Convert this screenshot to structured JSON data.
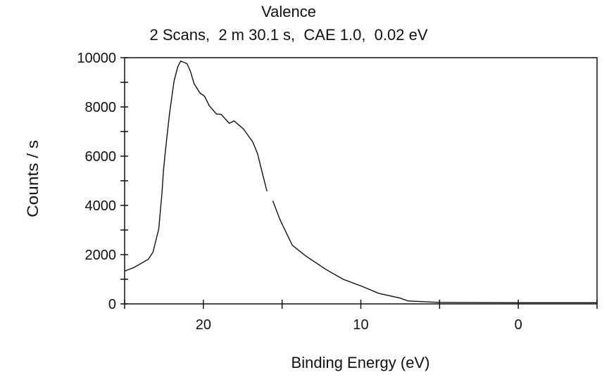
{
  "chart_data": {
    "type": "line",
    "title": "Valence",
    "subtitle": "2 Scans,  2 m 30.1 s,  CAE 1.0,  0.02 eV",
    "xlabel": "Binding Energy (eV)",
    "ylabel": "Counts / s",
    "xlim": [
      25,
      -5
    ],
    "ylim": [
      0,
      10000
    ],
    "x_reversed": true,
    "grid": false,
    "legend": "none",
    "x_ticks": [
      20,
      10,
      0
    ],
    "x_minor_ticks": [
      25,
      20,
      15,
      10,
      5,
      0,
      -5
    ],
    "y_ticks": [
      0,
      2000,
      4000,
      6000,
      8000,
      10000
    ],
    "y_minor_step": 1000,
    "line_color": "#111111",
    "series": [
      {
        "x": [
          25.0,
          24.4,
          23.5,
          23.2,
          22.83,
          22.63,
          22.53,
          22.38,
          22.15,
          21.86,
          21.63,
          21.44,
          21.04,
          20.81,
          20.59,
          20.22,
          19.92,
          19.62,
          19.17,
          18.87,
          18.35,
          18.05,
          17.45,
          16.86,
          16.56,
          16.26,
          15.96,
          null,
          15.59,
          15.14,
          14.35,
          13.5,
          12.17,
          11.12,
          9.93,
          8.88,
          7.54,
          7.0,
          5.0,
          0.0,
          -5.0
        ],
        "y": [
          1330,
          1480,
          1810,
          2100,
          3050,
          4480,
          5430,
          6390,
          7710,
          9050,
          9620,
          9860,
          9760,
          9430,
          8950,
          8570,
          8430,
          8050,
          7710,
          7700,
          7330,
          7430,
          7100,
          6570,
          6100,
          5330,
          4570,
          null,
          4190,
          3430,
          2380,
          1950,
          1380,
          1000,
          714,
          430,
          240,
          120,
          60,
          50,
          50
        ]
      }
    ]
  }
}
